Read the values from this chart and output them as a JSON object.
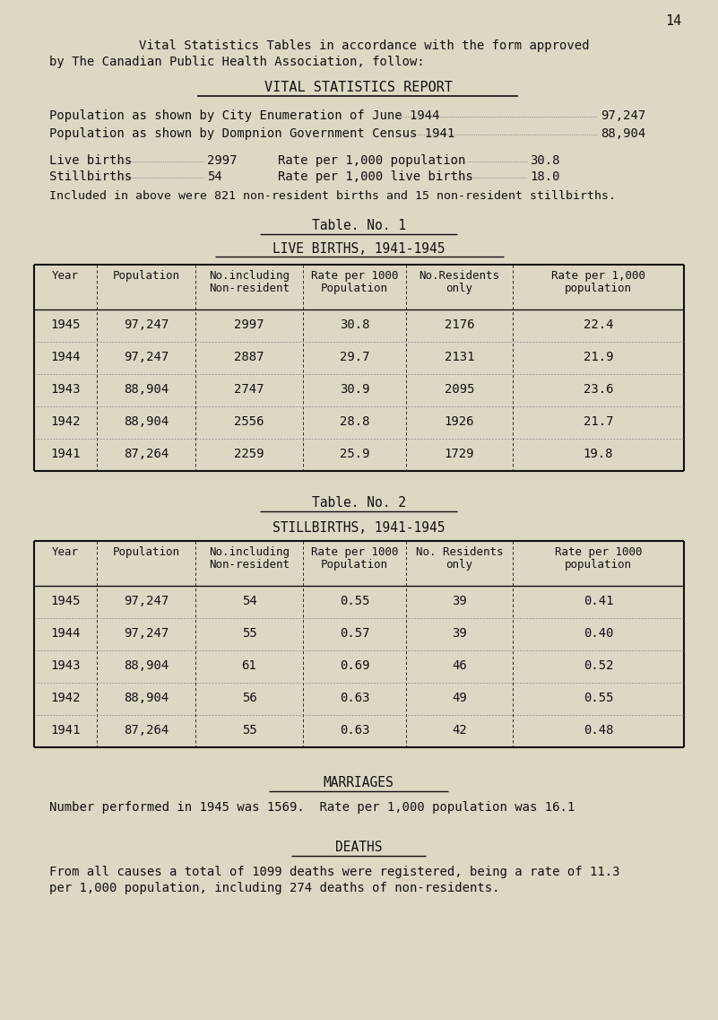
{
  "bg_color": "#ddd8c4",
  "text_color": "#111111",
  "page_number": "14",
  "header_line1": "Vital Statistics Tables in accordance with the form approved",
  "header_line2": "by The Canadian Public Health Association, follow:",
  "section_title": "VITAL STATISTICS REPORT",
  "pop_line1_label": "Population as shown by City Enumeration of June 1944",
  "pop_line1_value": "97,247",
  "pop_line2_label": "Population as shown by Dompnion Government Census 1941",
  "pop_line2_value": "88,904",
  "live_births_label": "Live births",
  "live_births_value": "2997",
  "rate_pop_label": "Rate per 1,000 population",
  "rate_pop_value": "30.8",
  "stillbirths_label": "Stillbirths",
  "stillbirths_value": "54",
  "rate_live_label": "Rate per 1,000 live births",
  "rate_live_value": "18.0",
  "included_line": "Included in above were 821 non-resident births and 15 non-resident stillbirths.",
  "table1_title": "Table. No. 1",
  "table1_subtitle": "LIVE BIRTHS, 1941-1945",
  "table1_col_headers_row1": [
    "Year",
    "Population",
    "No.including",
    "Rate per 1000",
    "No.Residents",
    "Rate per 1,000"
  ],
  "table1_col_headers_row2": [
    "",
    "",
    "Non-resident",
    "Population",
    "only",
    "population"
  ],
  "table1_data": [
    [
      "1945",
      "97,247",
      "2997",
      "30.8",
      "2176",
      "22.4"
    ],
    [
      "1944",
      "97,247",
      "2887",
      "29.7",
      "2131",
      "21.9"
    ],
    [
      "1943",
      "88,904",
      "2747",
      "30.9",
      "2095",
      "23.6"
    ],
    [
      "1942",
      "88,904",
      "2556",
      "28.8",
      "1926",
      "21.7"
    ],
    [
      "1941",
      "87,264",
      "2259",
      "25.9",
      "1729",
      "19.8"
    ]
  ],
  "table2_title": "Table. No. 2",
  "table2_subtitle": "STILLBIRTHS, 1941-1945",
  "table2_col_headers_row1": [
    "Year",
    "Population",
    "No.including",
    "Rate per 1000",
    "No. Residents",
    "Rate per 1000"
  ],
  "table2_col_headers_row2": [
    "",
    "",
    "Non-resident",
    "Population",
    "only",
    "population"
  ],
  "table2_data": [
    [
      "1945",
      "97,247",
      "54",
      "0.55",
      "39",
      "0.41"
    ],
    [
      "1944",
      "97,247",
      "55",
      "0.57",
      "39",
      "0.40"
    ],
    [
      "1943",
      "88,904",
      "61",
      "0.69",
      "46",
      "0.52"
    ],
    [
      "1942",
      "88,904",
      "56",
      "0.63",
      "49",
      "0.55"
    ],
    [
      "1941",
      "87,264",
      "55",
      "0.63",
      "42",
      "0.48"
    ]
  ],
  "marriages_title": "MARRIAGES",
  "marriages_text": "Number performed in 1945 was 1569.  Rate per 1,000 population was 16.1",
  "deaths_title": "DEATHS",
  "deaths_line1": "From all causes a total of 1099 deaths were registered, being a rate of 11.3",
  "deaths_line2": "per 1,000 population, including 274 deaths of non-residents."
}
